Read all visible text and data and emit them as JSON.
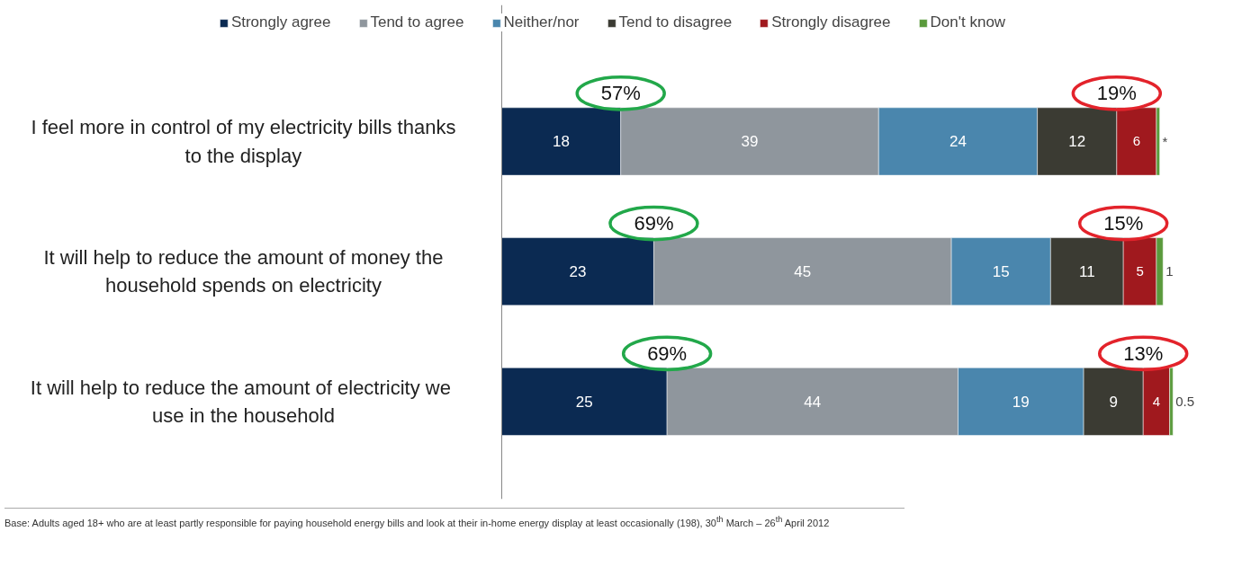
{
  "chart_data": {
    "type": "bar",
    "orientation": "horizontal",
    "stacked": true,
    "legend": "top",
    "categories": [
      "I feel more in control of my electricity bills thanks to the display",
      "It will help to reduce the amount of money the household spends on electricity",
      "It will help to reduce  the amount of electricity we use in the household"
    ],
    "series": [
      {
        "name": "Strongly agree",
        "color": "#0b2a52",
        "values": [
          18,
          23,
          25
        ],
        "value_labels": [
          "18",
          "23",
          "25"
        ]
      },
      {
        "name": "Tend to agree",
        "color": "#8f969d",
        "values": [
          39,
          45,
          44
        ],
        "value_labels": [
          "39",
          "45",
          "44"
        ]
      },
      {
        "name": "Neither/nor",
        "color": "#4a86ad",
        "values": [
          24,
          15,
          19
        ],
        "value_labels": [
          "24",
          "15",
          "19"
        ]
      },
      {
        "name": "Tend to disagree",
        "color": "#3b3b33",
        "values": [
          12,
          11,
          9
        ],
        "value_labels": [
          "12",
          "11",
          "9"
        ]
      },
      {
        "name": "Strongly disagree",
        "color": "#a0191e",
        "values": [
          6,
          5,
          4
        ],
        "value_labels": [
          "6",
          "5",
          "4"
        ]
      },
      {
        "name": "Don't know",
        "color": "#5a9a3c",
        "values": [
          0.5,
          1,
          0.5
        ],
        "value_labels": [
          "*",
          "1",
          "0.5"
        ]
      }
    ],
    "annotations": [
      "57%",
      "19%",
      "69%",
      "15%",
      "69%",
      "13%",
      "Base:  Adults aged 18+ who are at least partly responsible for paying household energy bills and look at their in-home energy display at least occasionally (198), 30$^{th}$ March – 26$^{th}$ April 2012"
    ]
  }
}
